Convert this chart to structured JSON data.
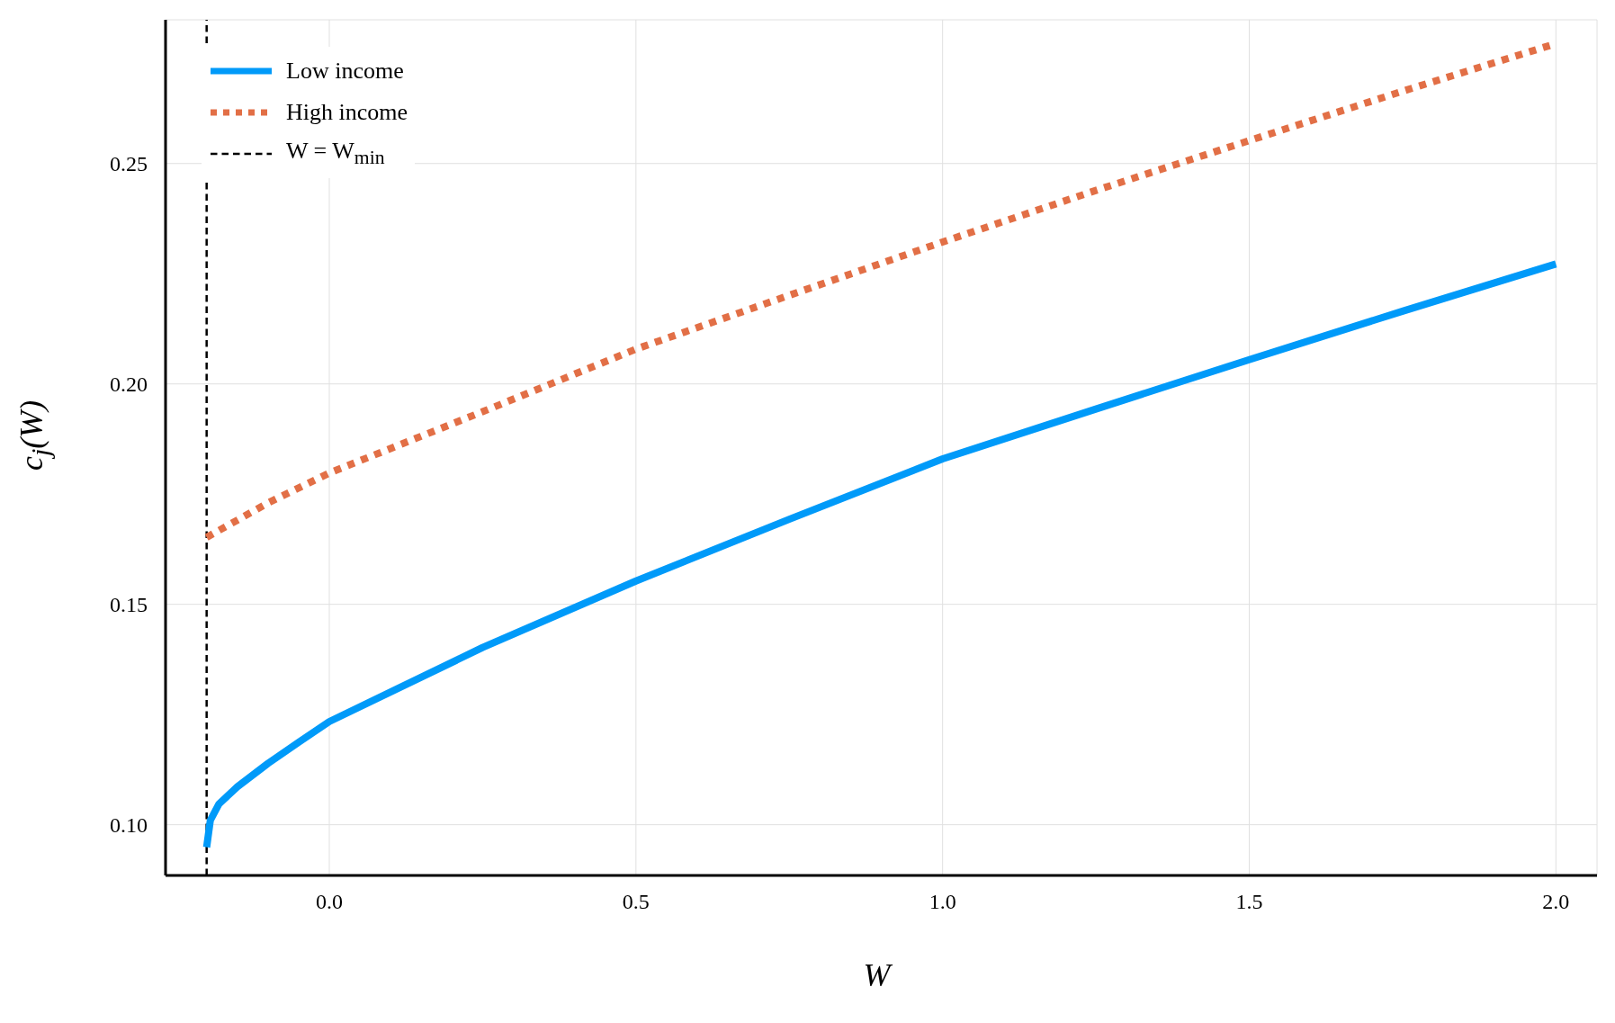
{
  "chart_data": {
    "type": "line",
    "xlabel": "W",
    "ylabel": "c$_{j}$(W)",
    "xlim": [
      -0.267,
      2.067
    ],
    "ylim": [
      0.0885,
      0.2826
    ],
    "xticks": [
      {
        "value": 0,
        "label": "0.0"
      },
      {
        "value": 0.5,
        "label": "0.5"
      },
      {
        "value": 1,
        "label": "1.0"
      },
      {
        "value": 1.5,
        "label": "1.5"
      },
      {
        "value": 2,
        "label": "2.0"
      }
    ],
    "yticks": [
      {
        "value": 0.1,
        "label": "0.10"
      },
      {
        "value": 0.15,
        "label": "0.15"
      },
      {
        "value": 0.2,
        "label": "0.20"
      },
      {
        "value": 0.25,
        "label": "0.25"
      }
    ],
    "grid": true,
    "legend": "top left",
    "marker": "none",
    "series": [
      {
        "name": "Low income",
        "color": "#009af9",
        "line_style": "solid",
        "x": [
          -0.2,
          -0.194,
          -0.18,
          -0.15,
          -0.1,
          -0.05,
          0,
          0.25,
          0.5,
          0.75,
          1,
          1.25,
          1.5,
          1.75,
          2
        ],
        "values": [
          0.0949,
          0.101,
          0.1047,
          0.1086,
          0.1139,
          0.1187,
          0.1234,
          0.1402,
          0.1553,
          0.1693,
          0.183,
          0.1943,
          0.2055,
          0.2165,
          0.2272
        ]
      },
      {
        "name": "High income",
        "color": "#e26f46",
        "line_style": "dotted",
        "x": [
          -0.2,
          -0.1,
          0,
          0.25,
          0.5,
          0.75,
          1,
          1.25,
          1.5,
          1.75,
          2
        ],
        "values": [
          0.1652,
          0.173,
          0.1798,
          0.1937,
          0.2079,
          0.2201,
          0.2322,
          0.2439,
          0.2552,
          0.2664,
          0.2772
        ]
      }
    ],
    "ref_lines": [
      {
        "axis": "x",
        "value": -0.2,
        "label": "W = W$_{min}$",
        "color": "#000000",
        "line_style": "dashed"
      }
    ]
  }
}
